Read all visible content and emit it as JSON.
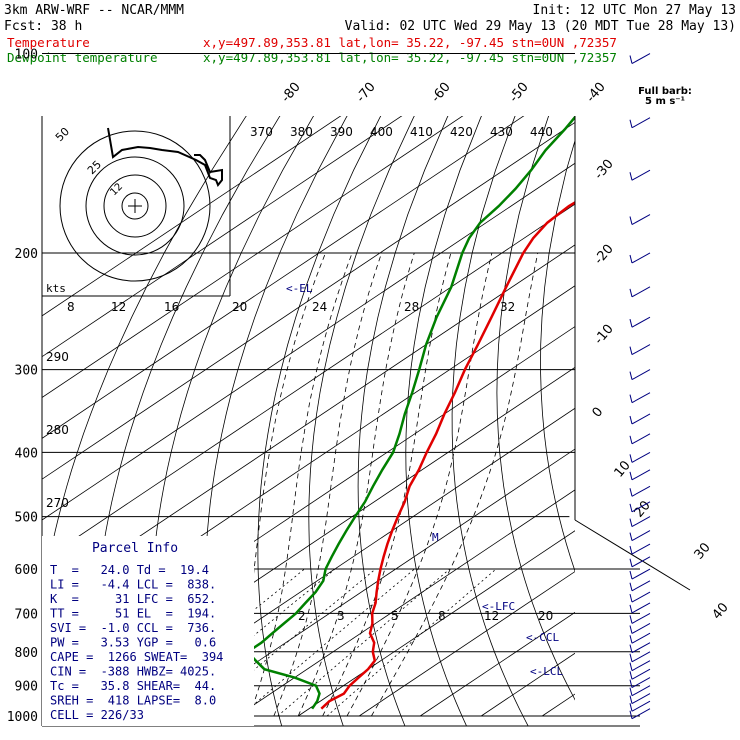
{
  "header": {
    "model": "3km ARW-WRF -- NCAR/MMM",
    "init": "Init: 12 UTC Mon 27 May 13",
    "fcst": "Fcst:   38 h",
    "valid": "Valid: 02 UTC Wed 29 May 13 (20 MDT Tue 28 May 13)",
    "temp_label": "Temperature",
    "dew_label": "Dewpoint temperature",
    "loc_line": "x,y=497.89,353.81   lat,lon= 35.22, -97.45  stn=0UN ,72357",
    "wind_title": "Full barb:",
    "wind_sub": "5 m s⁻¹"
  },
  "colors": {
    "temperature": "#e00000",
    "dewpoint": "#008000",
    "grid": "#000000",
    "text_blue": "#000080"
  },
  "parcel_info": {
    "title": "Parcel Info",
    "rows": [
      "T  =   24.0 Td =  19.4",
      "LI =   -4.4 LCL =  838.",
      "K  =     31 LFC =  652.",
      "TT =     51 EL  =  194.",
      "SVI =  -1.0 CCL =  736.",
      "PW =   3.53 YGP =   0.6",
      "CAPE =  1266 SWEAT=  394",
      "CIN =  -388 HWBZ= 4025.",
      "Tc =   35.8 SHEAR=  44.",
      "SREH =  418 LAPSE=  8.0",
      "CELL = 226/33"
    ]
  },
  "hodograph": {
    "kts_label": "kts",
    "rings": [
      "25",
      "50"
    ]
  },
  "levels_labels": {
    "el": "<-EL",
    "lfc": "<-LFC",
    "ccl": "<-CCL",
    "lcl": "<-LCL"
  },
  "chart_data": {
    "type": "line",
    "title": "",
    "pressure_ticks": [
      100,
      200,
      300,
      400,
      500,
      600,
      700,
      800,
      900,
      1000
    ],
    "plim": [
      1000,
      100
    ],
    "xlim_degC": [
      -40,
      44
    ],
    "top_temp_labels": [
      "-80",
      "-70",
      "-60",
      "-50",
      "-40"
    ],
    "right_temp_labels": [
      "-30",
      "-20",
      "-10",
      "0",
      "10",
      "20",
      "30",
      "40"
    ],
    "theta_labels": [
      "370",
      "380",
      "390",
      "400",
      "410",
      "420",
      "430",
      "440"
    ],
    "mixing_ratio_labels_top": [
      "8",
      "12",
      "16",
      "20",
      "24",
      "28",
      "32"
    ],
    "mixing_ratio_labels_mid": [
      "2",
      "3",
      "5",
      "8",
      "12",
      "20"
    ],
    "theta_left_labels": [
      "290",
      "280",
      "270"
    ],
    "series": [
      {
        "name": "Temperature",
        "points": [
          [
            975,
            22.0
          ],
          [
            950,
            21.5
          ],
          [
            925,
            22.0
          ],
          [
            900,
            21.0
          ],
          [
            875,
            20.5
          ],
          [
            850,
            20.0
          ],
          [
            825,
            19.0
          ],
          [
            800,
            16.5
          ],
          [
            775,
            14.5
          ],
          [
            750,
            11.5
          ],
          [
            725,
            9.5
          ],
          [
            700,
            7.0
          ],
          [
            675,
            5.0
          ],
          [
            650,
            2.5
          ],
          [
            625,
            0.0
          ],
          [
            600,
            -2.5
          ],
          [
            575,
            -5.0
          ],
          [
            550,
            -7.5
          ],
          [
            525,
            -10.0
          ],
          [
            500,
            -12.5
          ],
          [
            475,
            -15.0
          ],
          [
            450,
            -18.0
          ],
          [
            425,
            -20.5
          ],
          [
            400,
            -23.5
          ],
          [
            375,
            -26.5
          ],
          [
            350,
            -30.0
          ],
          [
            325,
            -33.5
          ],
          [
            300,
            -37.5
          ],
          [
            275,
            -41.5
          ],
          [
            250,
            -46.0
          ],
          [
            225,
            -51.0
          ],
          [
            200,
            -56.5
          ],
          [
            190,
            -58.5
          ],
          [
            180,
            -60.0
          ],
          [
            170,
            -60.5
          ],
          [
            160,
            -60.0
          ],
          [
            150,
            -59.0
          ],
          [
            140,
            -59.0
          ],
          [
            130,
            -59.5
          ],
          [
            120,
            -61.0
          ],
          [
            110,
            -62.0
          ],
          [
            100,
            -63.0
          ]
        ]
      },
      {
        "name": "Dewpoint temperature",
        "points": [
          [
            975,
            20.5
          ],
          [
            950,
            19.5
          ],
          [
            925,
            18.0
          ],
          [
            900,
            15.5
          ],
          [
            875,
            10.0
          ],
          [
            850,
            3.0
          ],
          [
            825,
            -0.5
          ],
          [
            800,
            -4.0
          ],
          [
            775,
            -4.0
          ],
          [
            750,
            -4.5
          ],
          [
            725,
            -5.0
          ],
          [
            700,
            -5.5
          ],
          [
            675,
            -6.5
          ],
          [
            650,
            -7.5
          ],
          [
            625,
            -9.0
          ],
          [
            600,
            -11.5
          ],
          [
            575,
            -13.5
          ],
          [
            550,
            -15.5
          ],
          [
            525,
            -17.5
          ],
          [
            500,
            -19.5
          ],
          [
            475,
            -21.5
          ],
          [
            450,
            -24.0
          ],
          [
            425,
            -26.5
          ],
          [
            400,
            -29.0
          ],
          [
            375,
            -32.5
          ],
          [
            350,
            -36.5
          ],
          [
            325,
            -40.5
          ],
          [
            300,
            -45.0
          ],
          [
            275,
            -50.0
          ],
          [
            250,
            -55.0
          ],
          [
            225,
            -60.0
          ],
          [
            200,
            -66.5
          ],
          [
            190,
            -69.0
          ],
          [
            180,
            -71.0
          ],
          [
            170,
            -72.0
          ],
          [
            160,
            -73.5
          ],
          [
            150,
            -75.5
          ],
          [
            140,
            -78.0
          ],
          [
            130,
            -80.0
          ],
          [
            120,
            -82.5
          ],
          [
            110,
            -84.5
          ],
          [
            100,
            -86.0
          ]
        ]
      }
    ],
    "wind_barbs": {
      "label": "Full barb: 5 m s-1"
    }
  }
}
